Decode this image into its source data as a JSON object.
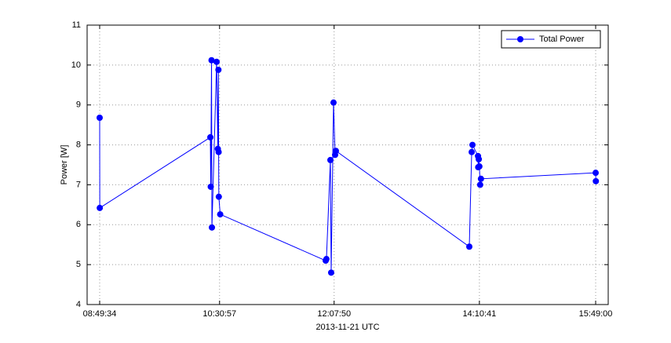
{
  "chart_data": {
    "type": "line",
    "xlabel": "2013-11-21 UTC",
    "ylabel": "Power [W]",
    "x": [
      "08:49:34",
      "08:49:40",
      "10:23:09",
      "10:23:30",
      "10:24:10",
      "10:24:30",
      "10:28:27",
      "10:29:30",
      "10:30:00",
      "10:30:10",
      "10:30:20",
      "10:31:30",
      "12:00:42",
      "12:01:20",
      "12:04:41",
      "12:05:20",
      "12:07:20",
      "12:08:40",
      "12:09:20",
      "14:02:09",
      "14:04:10",
      "14:04:50",
      "14:09:30",
      "14:09:40",
      "14:10:10",
      "14:10:41",
      "14:11:20",
      "14:12:00",
      "15:49:00",
      "15:49:10"
    ],
    "series": [
      {
        "name": "Total Power",
        "color": "#0000ff",
        "values": [
          8.68,
          6.42,
          8.19,
          6.95,
          10.12,
          5.93,
          10.08,
          7.9,
          9.88,
          7.82,
          6.7,
          6.26,
          5.1,
          5.14,
          7.62,
          4.8,
          9.06,
          7.75,
          7.85,
          5.45,
          7.82,
          8.0,
          7.72,
          7.44,
          7.64,
          7.46,
          7.0,
          7.15,
          7.3,
          7.09
        ]
      }
    ],
    "xlim": [
      "08:38:57",
      "15:59:37"
    ],
    "xticks": [
      "08:49:34",
      "10:30:57",
      "12:07:50",
      "14:10:41",
      "15:49:00"
    ],
    "ylim": [
      4,
      11
    ],
    "yticks": [
      4,
      5,
      6,
      7,
      8,
      9,
      10,
      11
    ],
    "grid": true,
    "legend": "northeast"
  }
}
